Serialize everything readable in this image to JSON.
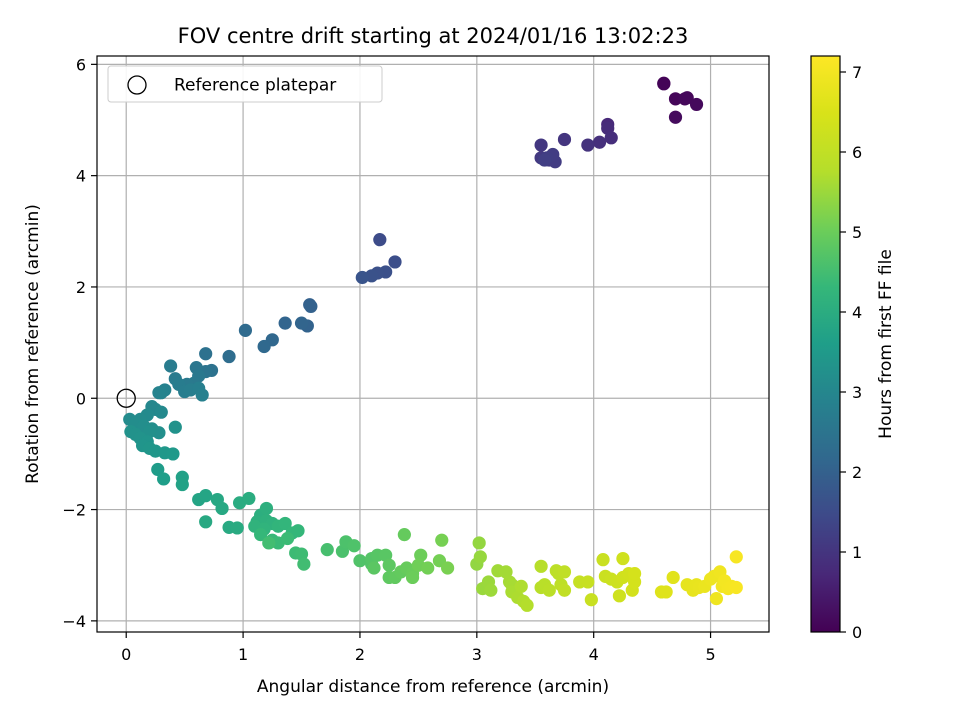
{
  "chart_data": {
    "type": "scatter",
    "title": "FOV centre drift starting at 2024/01/16 13:02:23",
    "xlabel": "Angular distance from reference (arcmin)",
    "ylabel": "Rotation from reference (arcmin)",
    "xlim": [
      -0.25,
      5.5
    ],
    "ylim": [
      -4.2,
      6.15
    ],
    "xticks": [
      0,
      1,
      2,
      3,
      4,
      5
    ],
    "xtick_labels": [
      "0",
      "1",
      "2",
      "3",
      "4",
      "5"
    ],
    "yticks": [
      -4,
      -2,
      0,
      2,
      4,
      6
    ],
    "ytick_labels": [
      "−4",
      "−2",
      "0",
      "2",
      "4",
      "6"
    ],
    "grid": true,
    "legend": {
      "placement": "top-left",
      "entries": [
        {
          "label": "Reference platepar",
          "marker": "open-circle"
        }
      ]
    },
    "reference_point": {
      "x": 0,
      "y": 0
    },
    "colorbar": {
      "label": "Hours from first FF file",
      "range": [
        0,
        7.2
      ],
      "ticks": [
        0,
        1,
        2,
        3,
        4,
        5,
        6,
        7
      ],
      "tick_labels": [
        "0",
        "1",
        "2",
        "3",
        "4",
        "5",
        "6",
        "7"
      ],
      "colormap": "viridis"
    },
    "series": [
      {
        "points": [
          [
            4.6,
            5.65,
            0.05
          ],
          [
            4.6,
            5.66,
            0.05
          ],
          [
            4.7,
            5.38,
            0.1
          ],
          [
            4.8,
            5.4,
            0.12
          ],
          [
            4.78,
            5.38,
            0.13
          ],
          [
            4.88,
            5.28,
            0.15
          ],
          [
            4.7,
            5.05,
            0.18
          ],
          [
            4.12,
            4.92,
            0.75
          ],
          [
            4.12,
            4.85,
            0.8
          ],
          [
            4.15,
            4.68,
            0.85
          ],
          [
            4.05,
            4.6,
            0.9
          ],
          [
            3.95,
            4.55,
            0.95
          ],
          [
            3.75,
            4.65,
            1.0
          ],
          [
            3.55,
            4.55,
            1.05
          ],
          [
            3.55,
            4.32,
            1.1
          ],
          [
            3.62,
            4.28,
            1.12
          ],
          [
            3.67,
            4.25,
            1.15
          ],
          [
            3.65,
            4.38,
            1.18
          ],
          [
            3.6,
            4.32,
            1.2
          ],
          [
            3.58,
            4.28,
            1.22
          ],
          [
            2.17,
            2.85,
            1.5
          ],
          [
            2.3,
            2.45,
            1.55
          ],
          [
            2.22,
            2.27,
            1.6
          ],
          [
            2.15,
            2.25,
            1.62
          ],
          [
            2.1,
            2.2,
            1.65
          ],
          [
            2.02,
            2.17,
            1.7
          ],
          [
            1.57,
            1.68,
            2.0
          ],
          [
            1.58,
            1.65,
            2.02
          ],
          [
            1.55,
            1.3,
            2.05
          ],
          [
            1.5,
            1.35,
            2.08
          ],
          [
            1.36,
            1.35,
            2.1
          ],
          [
            1.25,
            1.05,
            2.15
          ],
          [
            1.18,
            0.93,
            2.2
          ],
          [
            1.02,
            1.22,
            2.25
          ],
          [
            0.88,
            0.75,
            2.3
          ],
          [
            0.68,
            0.8,
            2.4
          ],
          [
            0.73,
            0.5,
            2.45
          ],
          [
            0.68,
            0.48,
            2.5
          ],
          [
            0.6,
            0.55,
            2.55
          ],
          [
            0.62,
            0.4,
            2.6
          ],
          [
            0.58,
            0.27,
            2.62
          ],
          [
            0.52,
            0.25,
            2.65
          ],
          [
            0.42,
            0.35,
            2.68
          ],
          [
            0.38,
            0.58,
            2.7
          ],
          [
            0.45,
            0.25,
            2.72
          ],
          [
            0.5,
            0.12,
            2.75
          ],
          [
            0.55,
            0.15,
            2.78
          ],
          [
            0.62,
            0.18,
            2.8
          ],
          [
            0.65,
            0.06,
            2.82
          ],
          [
            0.33,
            0.15,
            2.85
          ],
          [
            0.3,
            0.1,
            2.88
          ],
          [
            0.28,
            0.1,
            2.9
          ],
          [
            0.22,
            -0.15,
            3.0
          ],
          [
            0.25,
            -0.2,
            3.02
          ],
          [
            0.3,
            -0.25,
            3.05
          ],
          [
            0.18,
            -0.3,
            3.08
          ],
          [
            0.12,
            -0.38,
            3.1
          ],
          [
            0.03,
            -0.38,
            3.12
          ],
          [
            0.08,
            -0.45,
            3.15
          ],
          [
            0.15,
            -0.5,
            3.18
          ],
          [
            0.22,
            -0.55,
            3.2
          ],
          [
            0.28,
            -0.62,
            3.22
          ],
          [
            0.2,
            -0.6,
            3.25
          ],
          [
            0.04,
            -0.6,
            3.28
          ],
          [
            0.08,
            -0.65,
            3.3
          ],
          [
            0.12,
            -0.72,
            3.32
          ],
          [
            0.18,
            -0.78,
            3.35
          ],
          [
            0.14,
            -0.85,
            3.38
          ],
          [
            0.2,
            -0.9,
            3.4
          ],
          [
            0.25,
            -0.95,
            3.42
          ],
          [
            0.33,
            -0.98,
            3.45
          ],
          [
            0.4,
            -1.0,
            3.48
          ],
          [
            0.42,
            -0.52,
            3.3
          ],
          [
            0.27,
            -1.28,
            3.55
          ],
          [
            0.32,
            -1.45,
            3.6
          ],
          [
            0.48,
            -1.42,
            3.7
          ],
          [
            0.48,
            -1.55,
            3.72
          ],
          [
            0.62,
            -1.82,
            3.78
          ],
          [
            0.68,
            -1.75,
            3.8
          ],
          [
            0.78,
            -1.82,
            3.85
          ],
          [
            0.82,
            -1.98,
            3.88
          ],
          [
            0.68,
            -2.22,
            3.9
          ],
          [
            0.88,
            -2.32,
            3.92
          ],
          [
            0.95,
            -2.33,
            3.95
          ],
          [
            0.97,
            -1.88,
            3.98
          ],
          [
            1.05,
            -1.8,
            4.0
          ],
          [
            1.15,
            -2.1,
            4.05
          ],
          [
            1.2,
            -1.98,
            4.08
          ],
          [
            1.12,
            -2.22,
            4.1
          ],
          [
            1.2,
            -2.2,
            4.12
          ],
          [
            1.25,
            -2.25,
            4.15
          ],
          [
            1.1,
            -2.3,
            4.18
          ],
          [
            1.18,
            -2.35,
            4.2
          ],
          [
            1.3,
            -2.3,
            4.22
          ],
          [
            1.36,
            -2.25,
            4.25
          ],
          [
            1.42,
            -2.42,
            4.28
          ],
          [
            1.47,
            -2.38,
            4.3
          ],
          [
            1.15,
            -2.45,
            4.32
          ],
          [
            1.25,
            -2.55,
            4.35
          ],
          [
            1.3,
            -2.6,
            4.38
          ],
          [
            1.38,
            -2.52,
            4.4
          ],
          [
            1.45,
            -2.78,
            4.42
          ],
          [
            1.5,
            -2.8,
            4.45
          ],
          [
            1.52,
            -2.98,
            4.48
          ],
          [
            1.22,
            -2.6,
            4.5
          ],
          [
            1.72,
            -2.72,
            4.55
          ],
          [
            1.85,
            -2.75,
            4.6
          ],
          [
            1.88,
            -2.58,
            4.62
          ],
          [
            1.95,
            -2.65,
            4.65
          ],
          [
            2.0,
            -2.92,
            4.68
          ],
          [
            2.1,
            -2.98,
            4.7
          ],
          [
            2.1,
            -2.88,
            4.72
          ],
          [
            2.15,
            -2.82,
            4.75
          ],
          [
            2.22,
            -2.82,
            4.78
          ],
          [
            2.12,
            -3.05,
            4.8
          ],
          [
            2.25,
            -3.0,
            4.82
          ],
          [
            2.25,
            -3.22,
            4.85
          ],
          [
            2.3,
            -3.22,
            4.88
          ],
          [
            2.35,
            -3.12,
            4.9
          ],
          [
            2.38,
            -2.45,
            4.92
          ],
          [
            2.4,
            -3.05,
            4.95
          ],
          [
            2.45,
            -3.15,
            4.98
          ],
          [
            2.45,
            -3.22,
            5.0
          ],
          [
            2.52,
            -2.82,
            5.02
          ],
          [
            2.5,
            -3.0,
            5.05
          ],
          [
            2.58,
            -3.05,
            5.08
          ],
          [
            2.68,
            -2.92,
            5.1
          ],
          [
            2.7,
            -2.55,
            5.12
          ],
          [
            2.75,
            -3.05,
            5.15
          ],
          [
            3.0,
            -2.98,
            5.4
          ],
          [
            3.02,
            -2.6,
            5.42
          ],
          [
            3.03,
            -2.85,
            5.45
          ],
          [
            3.05,
            -3.42,
            5.48
          ],
          [
            3.1,
            -3.3,
            5.5
          ],
          [
            3.12,
            -3.45,
            5.52
          ],
          [
            3.18,
            -3.1,
            5.55
          ],
          [
            3.25,
            -3.12,
            5.58
          ],
          [
            3.28,
            -3.3,
            5.6
          ],
          [
            3.3,
            -3.35,
            5.62
          ],
          [
            3.3,
            -3.48,
            5.65
          ],
          [
            3.35,
            -3.58,
            5.68
          ],
          [
            3.38,
            -3.38,
            5.7
          ],
          [
            3.4,
            -3.65,
            5.72
          ],
          [
            3.43,
            -3.72,
            5.75
          ],
          [
            3.55,
            -3.02,
            5.8
          ],
          [
            3.55,
            -3.4,
            5.82
          ],
          [
            3.58,
            -3.35,
            5.85
          ],
          [
            3.62,
            -3.45,
            5.88
          ],
          [
            3.68,
            -3.1,
            5.9
          ],
          [
            3.7,
            -3.15,
            5.92
          ],
          [
            3.72,
            -3.35,
            5.95
          ],
          [
            3.75,
            -3.12,
            5.98
          ],
          [
            3.75,
            -3.45,
            6.0
          ],
          [
            3.88,
            -3.3,
            6.1
          ],
          [
            3.95,
            -3.3,
            6.12
          ],
          [
            3.98,
            -3.62,
            6.15
          ],
          [
            4.08,
            -2.9,
            6.18
          ],
          [
            4.1,
            -3.2,
            6.2
          ],
          [
            4.15,
            -3.25,
            6.22
          ],
          [
            4.2,
            -3.3,
            6.25
          ],
          [
            4.22,
            -3.55,
            6.28
          ],
          [
            4.25,
            -2.88,
            6.3
          ],
          [
            4.25,
            -3.22,
            6.32
          ],
          [
            4.3,
            -3.15,
            6.35
          ],
          [
            4.33,
            -3.45,
            6.38
          ],
          [
            4.35,
            -3.3,
            6.4
          ],
          [
            4.35,
            -3.15,
            6.42
          ],
          [
            4.58,
            -3.48,
            6.6
          ],
          [
            4.62,
            -3.48,
            6.62
          ],
          [
            4.68,
            -3.22,
            6.65
          ],
          [
            4.8,
            -3.35,
            6.75
          ],
          [
            4.85,
            -3.45,
            6.78
          ],
          [
            4.88,
            -3.35,
            6.8
          ],
          [
            4.9,
            -3.4,
            6.82
          ],
          [
            4.95,
            -3.38,
            6.85
          ],
          [
            5.0,
            -3.25,
            6.88
          ],
          [
            5.03,
            -3.2,
            6.9
          ],
          [
            5.05,
            -3.6,
            6.92
          ],
          [
            5.08,
            -3.12,
            6.95
          ],
          [
            5.1,
            -3.38,
            6.98
          ],
          [
            5.12,
            -3.28,
            7.0
          ],
          [
            5.15,
            -3.42,
            7.02
          ],
          [
            5.18,
            -3.38,
            7.05
          ],
          [
            5.22,
            -2.85,
            7.08
          ],
          [
            5.22,
            -3.4,
            7.1
          ]
        ]
      }
    ]
  }
}
